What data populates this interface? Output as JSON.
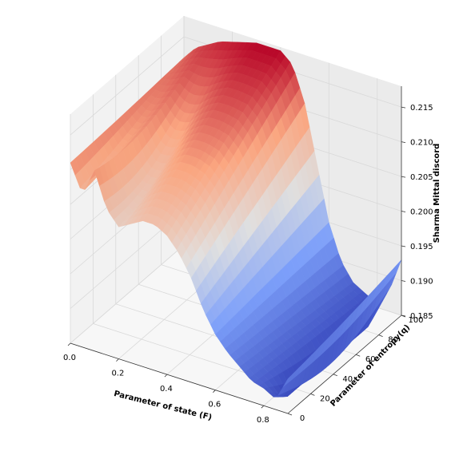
{
  "chart_data": {
    "type": "surface3d",
    "title": "",
    "xlabel": "Parameter of state (F)",
    "ylabel": "Parameter of entropy(q)",
    "zlabel": "Sharma Mittal discord",
    "xlim": [
      0.0,
      0.9
    ],
    "ylim": [
      0,
      100
    ],
    "zlim": [
      0.185,
      0.218
    ],
    "x_ticks": [
      "0.0",
      "0.2",
      "0.4",
      "0.6",
      "0.8"
    ],
    "y_ticks": [
      "0",
      "20",
      "40",
      "60",
      "80",
      "100"
    ],
    "z_ticks": [
      "0.185",
      "0.190",
      "0.195",
      "0.200",
      "0.205",
      "0.210",
      "0.215"
    ],
    "colormap": "coolwarm",
    "grid": true,
    "surface_profile_at_q0": {
      "F": [
        0.0,
        0.05,
        0.1,
        0.15,
        0.2,
        0.25,
        0.3,
        0.35,
        0.4,
        0.45,
        0.5,
        0.55,
        0.6,
        0.65,
        0.7,
        0.75,
        0.8,
        0.85,
        0.9
      ],
      "discord": [
        0.211,
        0.207,
        0.211,
        0.206,
        0.204,
        0.205,
        0.206,
        0.206,
        0.205,
        0.203,
        0.2,
        0.196,
        0.193,
        0.191,
        0.1895,
        0.188,
        0.1875,
        0.1865,
        0.19
      ]
    },
    "surface_profile_at_q100": {
      "F": [
        0.0,
        0.05,
        0.1,
        0.15,
        0.2,
        0.25,
        0.3,
        0.35,
        0.4,
        0.45,
        0.5,
        0.55,
        0.6,
        0.65,
        0.7,
        0.75,
        0.8,
        0.85,
        0.9
      ],
      "discord": [
        0.212,
        0.214,
        0.215,
        0.216,
        0.2165,
        0.217,
        0.2175,
        0.2175,
        0.2175,
        0.216,
        0.211,
        0.203,
        0.195,
        0.19,
        0.1875,
        0.1865,
        0.1855,
        0.188,
        0.193
      ]
    }
  }
}
